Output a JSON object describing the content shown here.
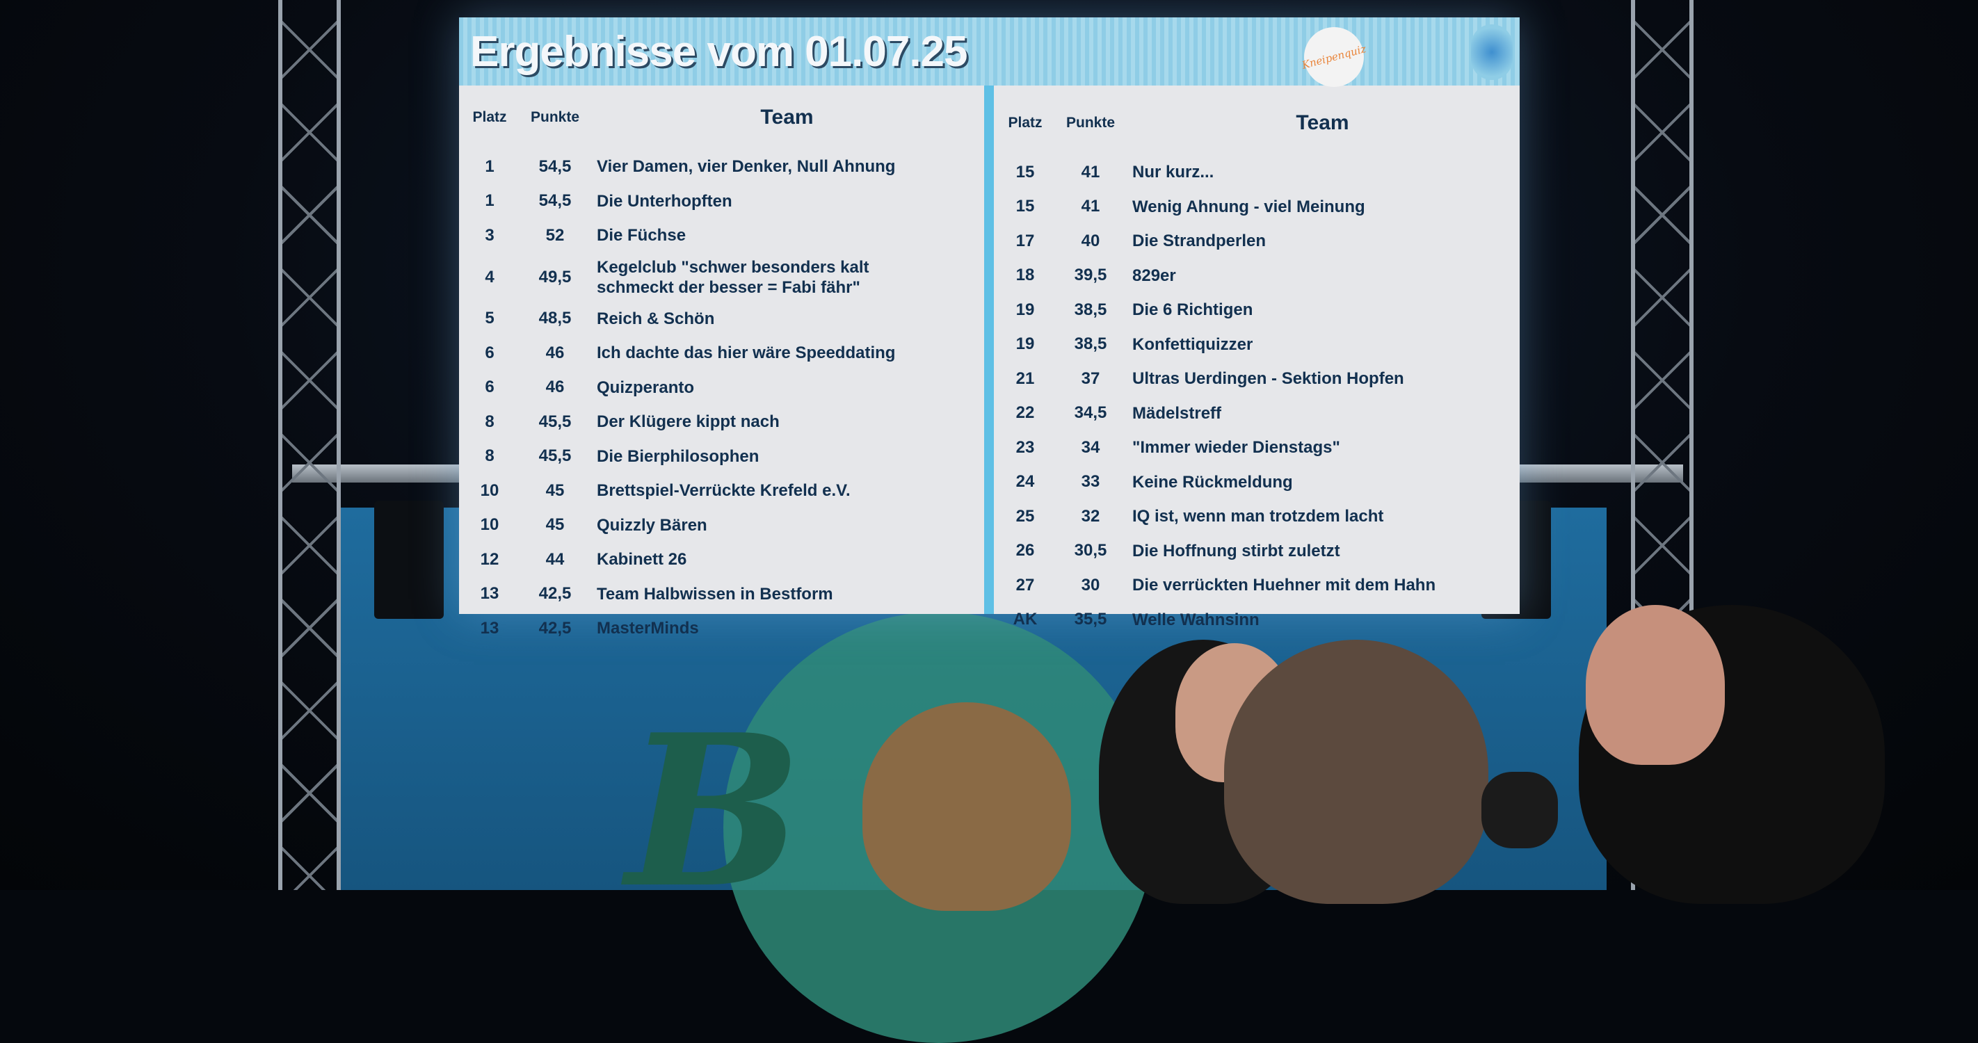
{
  "screen": {
    "title": "Ergebnisse vom 01.07.25",
    "logo_text": "Kneipenquiz",
    "columns": {
      "platz": "Platz",
      "punkte": "Punkte",
      "team": "Team"
    },
    "left_rows": [
      {
        "platz": "1",
        "punkte": "54,5",
        "team": "Vier Damen, vier Denker, Null Ahnung"
      },
      {
        "platz": "1",
        "punkte": "54,5",
        "team": "Die Unterhopften"
      },
      {
        "platz": "3",
        "punkte": "52",
        "team": "Die Füchse"
      },
      {
        "platz": "4",
        "punkte": "49,5",
        "team": "Kegelclub \"schwer besonders kalt schmeckt der besser = Fabi fähr\""
      },
      {
        "platz": "5",
        "punkte": "48,5",
        "team": "Reich & Schön"
      },
      {
        "platz": "6",
        "punkte": "46",
        "team": "Ich dachte das hier wäre Speeddating"
      },
      {
        "platz": "6",
        "punkte": "46",
        "team": "Quizperanto"
      },
      {
        "platz": "8",
        "punkte": "45,5",
        "team": "Der Klügere kippt nach"
      },
      {
        "platz": "8",
        "punkte": "45,5",
        "team": "Die Bierphilosophen"
      },
      {
        "platz": "10",
        "punkte": "45",
        "team": "Brettspiel-Verrückte Krefeld e.V."
      },
      {
        "platz": "10",
        "punkte": "45",
        "team": "Quizzly Bären"
      },
      {
        "platz": "12",
        "punkte": "44",
        "team": "Kabinett 26"
      },
      {
        "platz": "13",
        "punkte": "42,5",
        "team": "Team Halbwissen in Bestform"
      },
      {
        "platz": "13",
        "punkte": "42,5",
        "team": "MasterMinds"
      }
    ],
    "right_rows": [
      {
        "platz": "15",
        "punkte": "41",
        "team": "Nur kurz..."
      },
      {
        "platz": "15",
        "punkte": "41",
        "team": "Wenig Ahnung - viel Meinung"
      },
      {
        "platz": "17",
        "punkte": "40",
        "team": "Die Strandperlen"
      },
      {
        "platz": "18",
        "punkte": "39,5",
        "team": "829er"
      },
      {
        "platz": "19",
        "punkte": "38,5",
        "team": "Die 6 Richtigen"
      },
      {
        "platz": "19",
        "punkte": "38,5",
        "team": "Konfettiquizzer"
      },
      {
        "platz": "21",
        "punkte": "37",
        "team": "Ultras Uerdingen - Sektion Hopfen"
      },
      {
        "platz": "22",
        "punkte": "34,5",
        "team": "Mädelstreff"
      },
      {
        "platz": "23",
        "punkte": "34",
        "team": "\"Immer wieder Dienstags\""
      },
      {
        "platz": "24",
        "punkte": "33",
        "team": "Keine Rückmeldung"
      },
      {
        "platz": "25",
        "punkte": "32",
        "team": "IQ ist, wenn man trotzdem lacht"
      },
      {
        "platz": "26",
        "punkte": "30,5",
        "team": "Die Hoffnung stirbt zuletzt"
      },
      {
        "platz": "27",
        "punkte": "30",
        "team": "Die verrückten Huehner mit dem Hahn"
      },
      {
        "platz": "AK",
        "punkte": "35,5",
        "team": "Welle Wahnsinn"
      }
    ]
  },
  "colors": {
    "screen_text": "#12304f",
    "header_band": "#8fcde6",
    "divider": "#5fc0e5",
    "banner": "#1f6c9e"
  }
}
